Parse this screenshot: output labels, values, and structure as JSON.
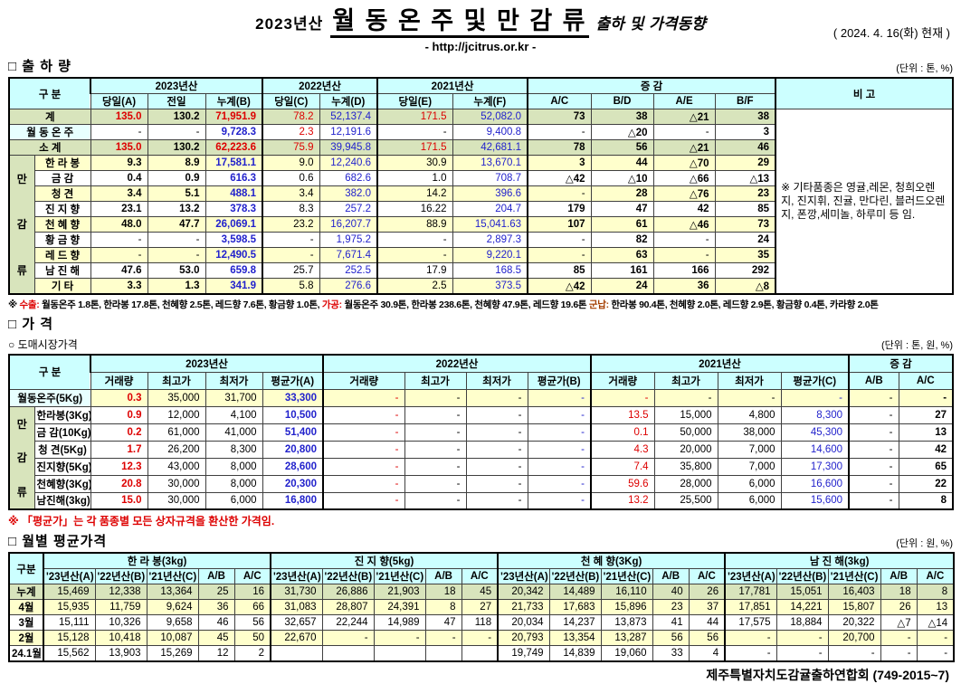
{
  "header": {
    "title_prefix": "2023년산",
    "title_main": "월 동 온 주 및 만 감 류",
    "title_suffix": "출하 및 가격동향",
    "url": "- http://jcitrus.or.kr -",
    "date": "( 2024.  4.  16(화) 현재 )"
  },
  "colors": {
    "header_bg": "#ccffff",
    "summary_bg": "#d8e4bc",
    "stripe_bg": "#ffffcc",
    "red_text": "#dd0000",
    "blue_text": "#2222cc"
  },
  "shipment": {
    "section_title": "□ 출 하 량",
    "unit": "(단위 : 톤, %)",
    "gubun_label": "구      분",
    "group_label": "만감류",
    "remark_header": "비  고",
    "col_groups": [
      "2023년산",
      "2022년산",
      "2021년산",
      "증      감"
    ],
    "sub_headers": [
      "당일(A)",
      "전일",
      "누계(B)",
      "당일(C)",
      "누계(D)",
      "당일(E)",
      "누계(F)",
      "A/C",
      "B/D",
      "A/E",
      "B/F"
    ],
    "remark": "※ 기타품종은 영귤,레몬, 청희오렌지, 진지휘, 진귤, 만다린, 블러드오렌지, 폰깡,세미놀, 하루미 등 임.",
    "rows": [
      {
        "key": "total",
        "type": "total",
        "label": "계",
        "cells": [
          "135.0",
          "130.2",
          "71,951.9",
          "78.2",
          "52,137.4",
          "171.5",
          "52,082.0",
          "73",
          "38",
          "△21",
          "38"
        ]
      },
      {
        "key": "winter-onju",
        "type": "onju",
        "label": "월 동 온 주",
        "cells": [
          "-",
          "-",
          "9,728.3",
          "2.3",
          "12,191.6",
          "-",
          "9,400.8",
          "-",
          "△20",
          "-",
          "3"
        ]
      },
      {
        "key": "subtotal",
        "type": "total",
        "label": "소    계",
        "cells": [
          "135.0",
          "130.2",
          "62,223.6",
          "75.9",
          "39,945.8",
          "171.5",
          "42,681.1",
          "78",
          "56",
          "△21",
          "46"
        ]
      },
      {
        "key": "hallabong",
        "type": "fruit",
        "label": "한 라 봉",
        "cells": [
          "9.3",
          "8.9",
          "17,581.1",
          "9.0",
          "12,240.6",
          "30.9",
          "13,670.1",
          "3",
          "44",
          "△70",
          "29"
        ]
      },
      {
        "key": "geumgam",
        "type": "fruit",
        "label": "금      감",
        "cells": [
          "0.4",
          "0.9",
          "616.3",
          "0.6",
          "682.6",
          "1.0",
          "708.7",
          "△42",
          "△10",
          "△66",
          "△13"
        ]
      },
      {
        "key": "cheonggyeon",
        "type": "fruit",
        "label": "청      견",
        "cells": [
          "3.4",
          "5.1",
          "488.1",
          "3.4",
          "382.0",
          "14.2",
          "396.6",
          "-",
          "28",
          "△76",
          "23"
        ]
      },
      {
        "key": "jinjihyang",
        "type": "fruit",
        "label": "진 지 향",
        "cells": [
          "23.1",
          "13.2",
          "378.3",
          "8.3",
          "257.2",
          "16.22",
          "204.7",
          "179",
          "47",
          "42",
          "85"
        ]
      },
      {
        "key": "cheonhyehyang",
        "type": "fruit",
        "label": "천 혜 향",
        "cells": [
          "48.0",
          "47.7",
          "26,069.1",
          "23.2",
          "16,207.7",
          "88.9",
          "15,041.63",
          "107",
          "61",
          "△46",
          "73"
        ]
      },
      {
        "key": "hwanggeumhyang",
        "type": "fruit",
        "label": "황 금 향",
        "cells": [
          "-",
          "-",
          "3,598.5",
          "-",
          "1,975.2",
          "-",
          "2,897.3",
          "-",
          "82",
          "-",
          "24"
        ]
      },
      {
        "key": "redhyang",
        "type": "fruit",
        "label": "레 드 향",
        "cells": [
          "-",
          "-",
          "12,490.5",
          "-",
          "7,671.4",
          "-",
          "9,220.1",
          "-",
          "63",
          "-",
          "35"
        ]
      },
      {
        "key": "namjinhae",
        "type": "fruit",
        "label": "남 진 해",
        "cells": [
          "47.6",
          "53.0",
          "659.8",
          "25.7",
          "252.5",
          "17.9",
          "168.5",
          "85",
          "161",
          "166",
          "292"
        ]
      },
      {
        "key": "etc",
        "type": "fruit",
        "label": "기      타",
        "cells": [
          "3.3",
          "1.3",
          "341.9",
          "5.8",
          "276.6",
          "2.5",
          "373.5",
          "△42",
          "24",
          "36",
          "△8"
        ]
      }
    ],
    "footnote_segments": [
      {
        "text": "※ ",
        "color": "k"
      },
      {
        "text": "수출:",
        "color": "r"
      },
      {
        "text": " 월동온주 1.8톤, 한라봉 17.8톤, 천혜향 2.5톤, 레드향 7.6톤, 황금향 1.0톤, ",
        "color": "k"
      },
      {
        "text": "가공:",
        "color": "r"
      },
      {
        "text": " 월동온주 30.9톤, 한라봉 238.6톤, 천혜향 47.9톤, 레드향 19.6톤 ",
        "color": "k"
      },
      {
        "text": "군납:",
        "color": "m"
      },
      {
        "text": " 한라봉 90.4톤, 천혜향 2.0톤, 레드향 2.9톤, 황금향 0.4톤, 카라향 2.0톤",
        "color": "k"
      }
    ]
  },
  "price": {
    "section_title": "□ 가      격",
    "subsection_title": "○ 도매시장가격",
    "unit": "(단위 : 톤, 원, %)",
    "gubun_label": "구      분",
    "group_label": "만감류",
    "col_groups": [
      "2023년산",
      "2022년산",
      "2021년산",
      "증  감"
    ],
    "sub_headers": [
      "거래량",
      "최고가",
      "최저가",
      "평균가(A)",
      "거래량",
      "최고가",
      "최저가",
      "평균가(B)",
      "거래량",
      "최고가",
      "최저가",
      "평균가(C)",
      "A/B",
      "A/C"
    ],
    "note": "※ 「평균가」는 각 품종별 모든 상자규격을 환산한 가격임.",
    "rows": [
      {
        "key": "winter-onju",
        "type": "onju",
        "label": "월동온주(5Kg)",
        "cells": [
          "0.3",
          "35,000",
          "31,700",
          "33,300",
          "-",
          "-",
          "-",
          "-",
          "-",
          "-",
          "-",
          "-",
          "-",
          "-"
        ]
      },
      {
        "key": "hallabong",
        "type": "fruit",
        "label": "한라봉(3Kg)",
        "cells": [
          "0.9",
          "12,000",
          "4,100",
          "10,500",
          "-",
          "-",
          "-",
          "-",
          "13.5",
          "15,000",
          "4,800",
          "8,300",
          "-",
          "27"
        ]
      },
      {
        "key": "geumgam",
        "type": "fruit",
        "label": "금 감(10Kg)",
        "cells": [
          "0.2",
          "61,000",
          "41,000",
          "51,400",
          "-",
          "-",
          "-",
          "-",
          "0.1",
          "50,000",
          "38,000",
          "45,300",
          "-",
          "13"
        ]
      },
      {
        "key": "cheonggyeon",
        "type": "fruit",
        "label": "청   견(5Kg)",
        "cells": [
          "1.7",
          "26,200",
          "8,300",
          "20,800",
          "-",
          "-",
          "-",
          "-",
          "4.3",
          "20,000",
          "7,000",
          "14,600",
          "-",
          "42"
        ]
      },
      {
        "key": "jinjihyang",
        "type": "fruit",
        "label": "진지향(5Kg)",
        "cells": [
          "12.3",
          "43,000",
          "8,000",
          "28,600",
          "-",
          "-",
          "-",
          "-",
          "7.4",
          "35,800",
          "7,000",
          "17,300",
          "-",
          "65"
        ]
      },
      {
        "key": "cheonhyehyang",
        "type": "fruit",
        "label": "천혜향(3Kg)",
        "cells": [
          "20.8",
          "30,000",
          "8,000",
          "20,300",
          "-",
          "-",
          "-",
          "-",
          "59.6",
          "28,000",
          "6,000",
          "16,600",
          "-",
          "22"
        ]
      },
      {
        "key": "namjinhae",
        "type": "fruit",
        "label": "남진해(3kg)",
        "cells": [
          "15.0",
          "30,000",
          "6,000",
          "16,800",
          "-",
          "-",
          "-",
          "-",
          "13.2",
          "25,500",
          "6,000",
          "15,600",
          "-",
          "8"
        ]
      }
    ]
  },
  "monthly": {
    "section_title": "□ 월별 평균가격",
    "unit": "(단위 : 원, %)",
    "gubun_label": "구분",
    "col_groups": [
      "한 라 봉(3kg)",
      "진 지 향(5kg)",
      "천 혜 향(3Kg)",
      "남 진 해(3kg)"
    ],
    "sub_headers": [
      "'23년산(A)",
      "'22년산(B)",
      "'21년산(C)",
      "A/B",
      "A/C"
    ],
    "rows": [
      {
        "key": "cumulative",
        "label": "누계",
        "cells": [
          "15,469",
          "12,338",
          "13,364",
          "25",
          "16",
          "31,730",
          "26,886",
          "21,903",
          "18",
          "45",
          "20,342",
          "14,489",
          "16,110",
          "40",
          "26",
          "17,781",
          "15,051",
          "16,403",
          "18",
          "8"
        ]
      },
      {
        "key": "apr",
        "label": "4월",
        "cells": [
          "15,935",
          "11,759",
          "9,624",
          "36",
          "66",
          "31,083",
          "28,807",
          "24,391",
          "8",
          "27",
          "21,733",
          "17,683",
          "15,896",
          "23",
          "37",
          "17,851",
          "14,221",
          "15,807",
          "26",
          "13"
        ]
      },
      {
        "key": "mar",
        "label": "3월",
        "cells": [
          "15,111",
          "10,326",
          "9,658",
          "46",
          "56",
          "32,657",
          "22,244",
          "14,989",
          "47",
          "118",
          "20,034",
          "14,237",
          "13,873",
          "41",
          "44",
          "17,575",
          "18,884",
          "20,322",
          "△7",
          "△14"
        ]
      },
      {
        "key": "feb",
        "label": "2월",
        "cells": [
          "15,128",
          "10,418",
          "10,087",
          "45",
          "50",
          "22,670",
          "-",
          "-",
          "-",
          "-",
          "20,793",
          "13,354",
          "13,287",
          "56",
          "56",
          "-",
          "-",
          "20,700",
          "-",
          "-"
        ]
      },
      {
        "key": "jan24",
        "label": "24.1월",
        "cells": [
          "15,562",
          "13,903",
          "15,269",
          "12",
          "2",
          "",
          "",
          "",
          "",
          "",
          "19,749",
          "14,839",
          "19,060",
          "33",
          "4",
          "-",
          "-",
          "-",
          "-",
          "-"
        ]
      }
    ]
  },
  "footer": "제주특별자치도감귤출하연합회 (749-2015~7)"
}
